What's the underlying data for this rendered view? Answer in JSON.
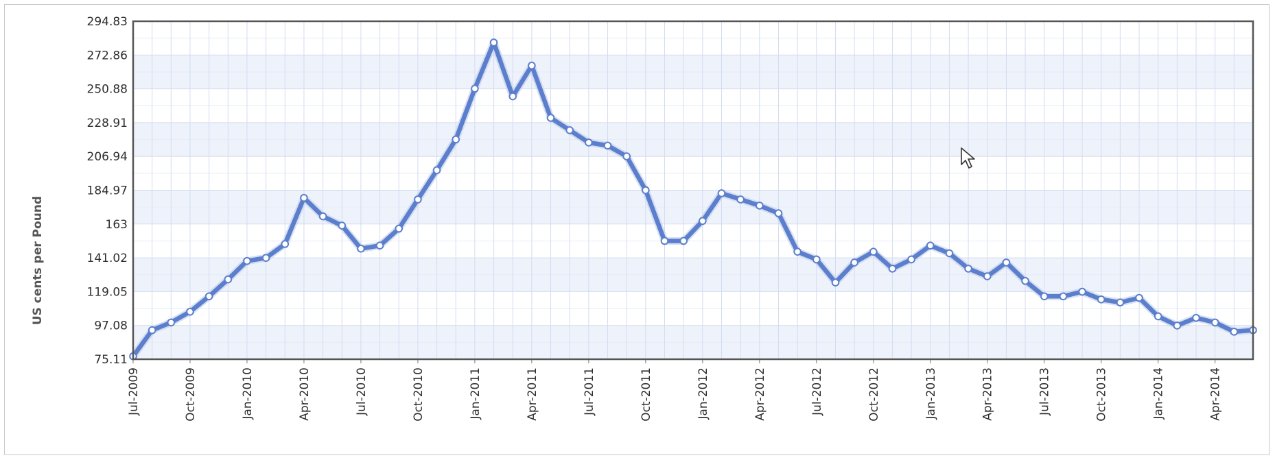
{
  "chart_data": {
    "type": "line",
    "xlabel": "",
    "ylabel": "US cents per Pound",
    "ylim": [
      75.11,
      294.83
    ],
    "yticks": [
      "294.83",
      "272.86",
      "250.88",
      "228.91",
      "206.94",
      "184.97",
      "163",
      "141.02",
      "119.05",
      "97.08",
      "75.11"
    ],
    "xticks": [
      "Jul-2009",
      "Oct-2009",
      "Jan-2010",
      "Apr-2010",
      "Jul-2010",
      "Oct-2010",
      "Jan-2011",
      "Apr-2011",
      "Jul-2011",
      "Oct-2011",
      "Jan-2012",
      "Apr-2012",
      "Jul-2012",
      "Oct-2012",
      "Jan-2013",
      "Apr-2013",
      "Jul-2013",
      "Oct-2013",
      "Jan-2014",
      "Apr-2014"
    ],
    "x": [
      "Jul-2009",
      "Aug-2009",
      "Sep-2009",
      "Oct-2009",
      "Nov-2009",
      "Dec-2009",
      "Jan-2010",
      "Feb-2010",
      "Mar-2010",
      "Apr-2010",
      "May-2010",
      "Jun-2010",
      "Jul-2010",
      "Aug-2010",
      "Sep-2010",
      "Oct-2010",
      "Nov-2010",
      "Dec-2010",
      "Jan-2011",
      "Feb-2011",
      "Mar-2011",
      "Apr-2011",
      "May-2011",
      "Jun-2011",
      "Jul-2011",
      "Aug-2011",
      "Sep-2011",
      "Oct-2011",
      "Nov-2011",
      "Dec-2011",
      "Jan-2012",
      "Feb-2012",
      "Mar-2012",
      "Apr-2012",
      "May-2012",
      "Jun-2012",
      "Jul-2012",
      "Aug-2012",
      "Sep-2012",
      "Oct-2012",
      "Nov-2012",
      "Dec-2012",
      "Jan-2013",
      "Feb-2013",
      "Mar-2013",
      "Apr-2013",
      "May-2013",
      "Jun-2013",
      "Jul-2013",
      "Aug-2013",
      "Sep-2013",
      "Oct-2013",
      "Nov-2013",
      "Dec-2013",
      "Jan-2014",
      "Feb-2014",
      "Mar-2014",
      "Apr-2014",
      "May-2014",
      "Jun-2014"
    ],
    "series": [
      {
        "values": [
          77,
          94,
          99,
          106,
          116,
          127,
          139,
          141,
          150,
          180,
          168,
          162,
          147,
          149,
          160,
          179,
          198,
          218,
          251,
          281,
          246,
          266,
          232,
          224,
          216,
          214,
          207,
          185,
          152,
          152,
          165,
          183,
          179,
          175,
          170,
          145,
          140,
          125,
          138,
          145,
          134,
          140,
          149,
          144,
          134,
          129,
          138,
          126,
          116,
          116,
          119,
          114,
          112,
          115,
          103,
          97,
          102,
          99,
          93,
          94
        ],
        "color": "#5b7fcc"
      }
    ],
    "grid": true,
    "legend": "none"
  },
  "colors": {
    "line": "#5b7fcc",
    "band": "#eef2fb",
    "grid": "#d3dcef",
    "axis": "#555555"
  }
}
